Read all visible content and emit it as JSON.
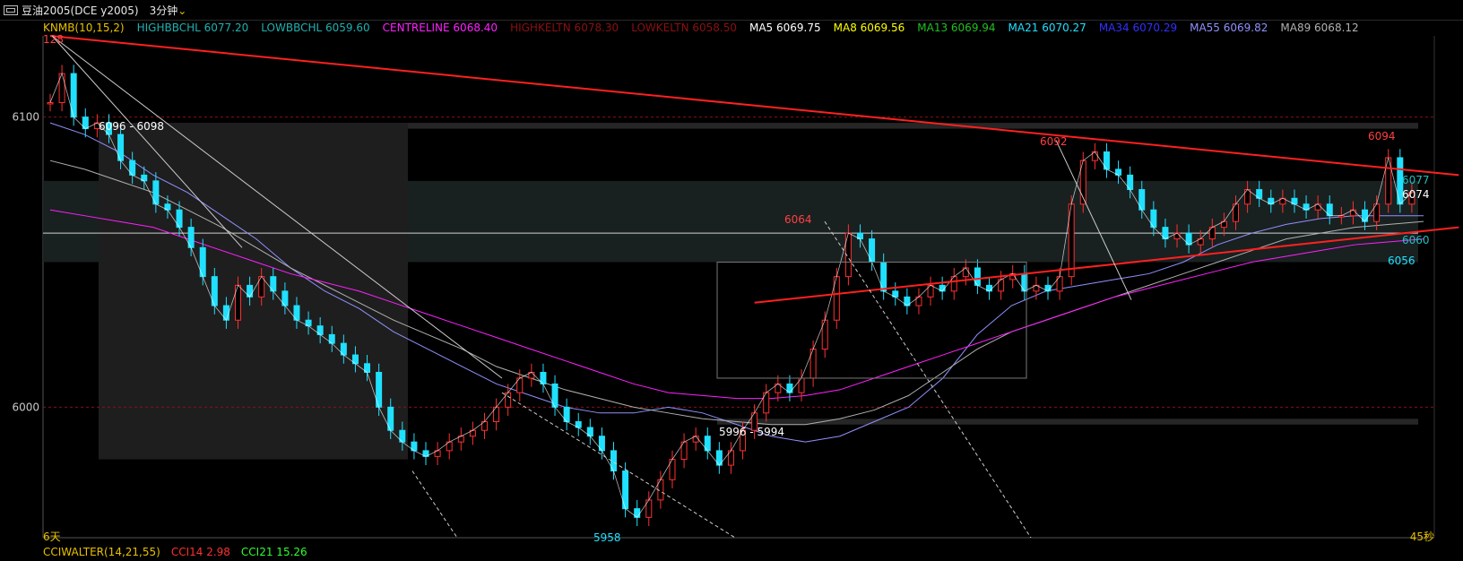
{
  "topbar": {
    "title": "豆油2005(DCE  y2005)",
    "period": "3分钟",
    "period_caret": "⌄"
  },
  "indicators": [
    {
      "label": "KNMB(10,15,2)",
      "color": "#e8c000"
    },
    {
      "label": "HIGHBBCHL 6077.20",
      "color": "#20b0b0"
    },
    {
      "label": "LOWBBCHL 6059.60",
      "color": "#20b0b0"
    },
    {
      "label": "CENTRELINE 6068.40",
      "color": "#ff20ff"
    },
    {
      "label": "HIGHKELTN 6078.30",
      "color": "#8a1010"
    },
    {
      "label": "LOWKELTN 6058.50",
      "color": "#8a1010"
    },
    {
      "label": "MA5 6069.75",
      "color": "#ffffff"
    },
    {
      "label": "MA8 6069.56",
      "color": "#ffff00"
    },
    {
      "label": "MA13 6069.94",
      "color": "#20c020"
    },
    {
      "label": "MA21 6070.27",
      "color": "#20e0ff"
    },
    {
      "label": "MA34 6070.29",
      "color": "#3030ff"
    },
    {
      "label": "MA55 6069.82",
      "color": "#9090ff"
    },
    {
      "label": "MA89 6068.12",
      "color": "#b0b0b0"
    }
  ],
  "bottom": {
    "indicator": "CCIWALTER(14,21,55)",
    "cci14": "CCI14 2.98",
    "cci21": "CCI21 15.26"
  },
  "chart_data": {
    "type": "line",
    "title": "",
    "ylim": [
      5955,
      6128
    ],
    "y_ticks": [
      6000,
      6100
    ],
    "top_label": "128",
    "x_start_label": "6天",
    "x_end_label": "45秒",
    "close_series": [
      6105,
      6115,
      6100,
      6096,
      6098,
      6094,
      6085,
      6080,
      6078,
      6070,
      6068,
      6062,
      6055,
      6045,
      6035,
      6030,
      6042,
      6038,
      6045,
      6040,
      6035,
      6030,
      6028,
      6025,
      6022,
      6018,
      6015,
      6012,
      6000,
      5992,
      5988,
      5985,
      5983,
      5985,
      5988,
      5990,
      5992,
      5995,
      6000,
      6005,
      6010,
      6012,
      6008,
      6000,
      5995,
      5993,
      5990,
      5985,
      5978,
      5965,
      5962,
      5968,
      5975,
      5982,
      5988,
      5990,
      5985,
      5980,
      5985,
      5992,
      5998,
      6005,
      6008,
      6005,
      6010,
      6020,
      6030,
      6045,
      6060,
      6058,
      6050,
      6040,
      6038,
      6035,
      6038,
      6042,
      6040,
      6045,
      6048,
      6042,
      6040,
      6044,
      6046,
      6040,
      6042,
      6040,
      6045,
      6070,
      6085,
      6088,
      6082,
      6080,
      6075,
      6068,
      6062,
      6058,
      6060,
      6056,
      6058,
      6062,
      6064,
      6070,
      6075,
      6072,
      6070,
      6072,
      6070,
      6068,
      6070,
      6066,
      6066,
      6068,
      6064,
      6070,
      6086,
      6070,
      6074
    ],
    "ma_lines": [
      {
        "name": "MA55",
        "color": "#9090ff",
        "values": [
          6098,
          6094,
          6088,
          6080,
          6074,
          6066,
          6058,
          6048,
          6040,
          6034,
          6026,
          6020,
          6014,
          6008,
          6004,
          6000,
          5998,
          5998,
          6000,
          5998,
          5994,
          5990,
          5988,
          5990,
          5995,
          6000,
          6010,
          6025,
          6035,
          6040,
          6042,
          6044,
          6046,
          6050,
          6056,
          6060,
          6063,
          6065,
          6066,
          6066,
          6066
        ]
      },
      {
        "name": "MA89",
        "color": "#b0b0b0",
        "values": [
          6085,
          6082,
          6078,
          6074,
          6068,
          6062,
          6055,
          6048,
          6042,
          6036,
          6030,
          6025,
          6020,
          6014,
          6010,
          6006,
          6003,
          6000,
          5998,
          5996,
          5995,
          5994,
          5994,
          5996,
          5999,
          6004,
          6012,
          6020,
          6026,
          6030,
          6034,
          6038,
          6042,
          6046,
          6050,
          6054,
          6058,
          6060,
          6062,
          6063,
          6064
        ]
      },
      {
        "name": "CENTRELINE",
        "color": "#ff20ff",
        "values": [
          6068,
          6066,
          6064,
          6062,
          6058,
          6054,
          6050,
          6046,
          6043,
          6040,
          6036,
          6032,
          6028,
          6024,
          6020,
          6016,
          6012,
          6008,
          6005,
          6004,
          6003,
          6003,
          6004,
          6006,
          6010,
          6014,
          6018,
          6022,
          6026,
          6030,
          6034,
          6038,
          6041,
          6044,
          6047,
          6050,
          6052,
          6054,
          6056,
          6057,
          6058
        ]
      }
    ],
    "annotations": [
      {
        "text": "6096 - 6098",
        "color": "#ffffff"
      },
      {
        "text": "6064",
        "color": "#ff4040"
      },
      {
        "text": "6092",
        "color": "#ff4040"
      },
      {
        "text": "6094",
        "color": "#ff4040"
      },
      {
        "text": "6077",
        "color": "#20c0c0"
      },
      {
        "text": "6074",
        "color": "#ffffff"
      },
      {
        "text": "6060",
        "color": "#20c0c0"
      },
      {
        "text": "6056",
        "color": "#20e0ff"
      },
      {
        "text": "5996 - 5994",
        "color": "#ffffff"
      },
      {
        "text": "5958",
        "color": "#20e0ff"
      }
    ],
    "zones": [
      {
        "y_from": 6078,
        "y_to": 6050,
        "color": "#1c2424"
      },
      {
        "y_from": 6098,
        "y_to": 6096,
        "color": "#2a2a2a"
      },
      {
        "y_from": 5996,
        "y_to": 5994,
        "color": "#2a2a2a"
      }
    ],
    "trendlines": [
      {
        "from": [
          0,
          6128
        ],
        "to": [
          120,
          6080
        ],
        "color": "#ff2020"
      },
      {
        "from": [
          60,
          6036
        ],
        "to": [
          120,
          6062
        ],
        "color": "#ff2020"
      }
    ],
    "hlines": [
      {
        "y": 6060,
        "color": "#d0d0d0"
      }
    ]
  }
}
